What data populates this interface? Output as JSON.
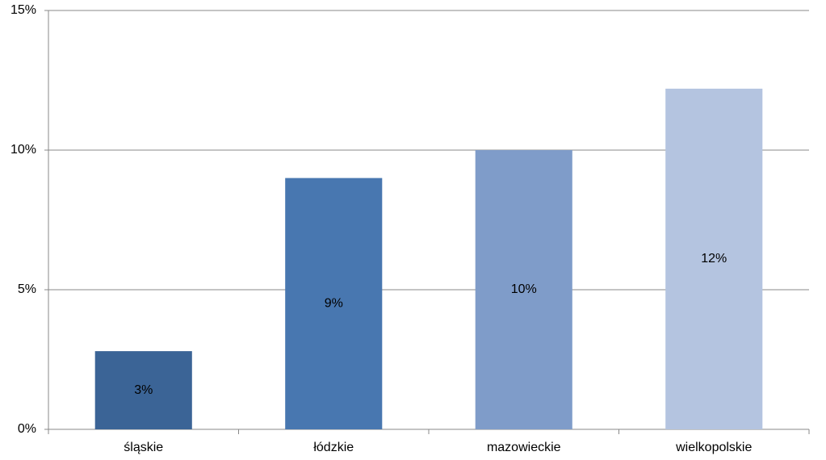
{
  "chart_data": {
    "type": "bar",
    "categories": [
      "śląskie",
      "łódzkie",
      "mazowieckie",
      "wielkopolskie"
    ],
    "values": [
      2.8,
      9,
      10,
      12.2
    ],
    "value_labels": [
      "3%",
      "9%",
      "10%",
      "12%"
    ],
    "colors": [
      "#3b6496",
      "#4877b0",
      "#7f9cc9",
      "#b4c4e0"
    ],
    "ylim": [
      0,
      15
    ],
    "yticks": [
      {
        "value": 0,
        "label": "0%"
      },
      {
        "value": 5,
        "label": "5%"
      },
      {
        "value": 10,
        "label": "10%"
      },
      {
        "value": 15,
        "label": "15%"
      }
    ],
    "grid": true
  }
}
